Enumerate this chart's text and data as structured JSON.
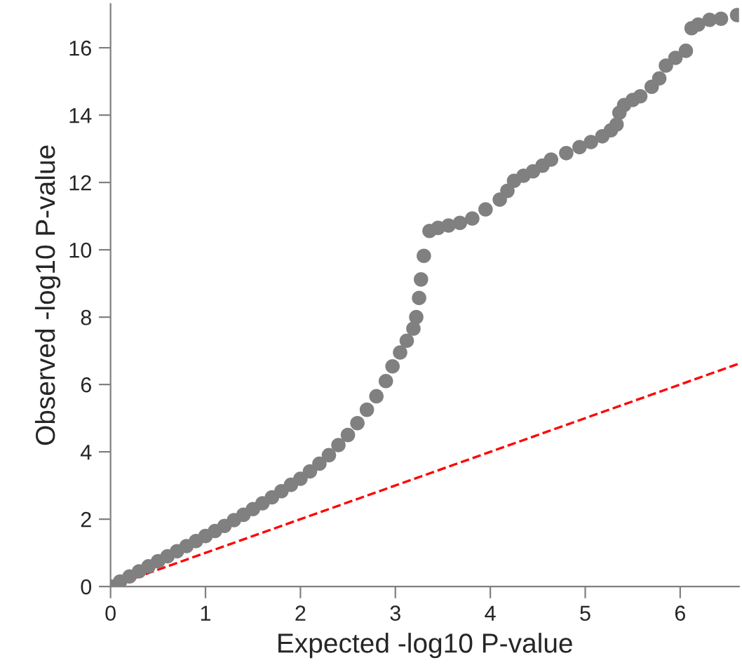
{
  "chart_data": {
    "type": "scatter",
    "xlabel": "Expected -log10 P-value",
    "ylabel": "Observed -log10 P-value",
    "xlim": [
      0,
      6.62
    ],
    "ylim": [
      0,
      17.3
    ],
    "xticks": [
      0,
      1,
      2,
      3,
      4,
      5,
      6
    ],
    "yticks": [
      0,
      2,
      4,
      6,
      8,
      10,
      12,
      14,
      16
    ],
    "grid": false,
    "series": [
      {
        "color": "#808080",
        "marker": "circle",
        "x": [
          0,
          0.1,
          0.2,
          0.3,
          0.4,
          0.5,
          0.6,
          0.7,
          0.8,
          0.9,
          1,
          1.1,
          1.2,
          1.3,
          1.4,
          1.5,
          1.6,
          1.7,
          1.8,
          1.9,
          2,
          2.1,
          2.2,
          2.3,
          2.4,
          2.5,
          2.6,
          2.7,
          2.8,
          2.9,
          2.97,
          3.05,
          3.12,
          3.19,
          3.22,
          3.25,
          3.27,
          3.3,
          3.36,
          3.45,
          3.56,
          3.68,
          3.81,
          3.95,
          4.1,
          4.18,
          4.25,
          4.35,
          4.45,
          4.55,
          4.64,
          4.8,
          4.94,
          5.06,
          5.18,
          5.27,
          5.33,
          5.36,
          5.41,
          5.5,
          5.58,
          5.7,
          5.78,
          5.85,
          5.95,
          6.06,
          6.12,
          6.19,
          6.31,
          6.43,
          6.6
        ],
        "values": [
          0,
          0.15,
          0.3,
          0.45,
          0.6,
          0.75,
          0.9,
          1.05,
          1.2,
          1.35,
          1.5,
          1.65,
          1.8,
          1.97,
          2.13,
          2.3,
          2.47,
          2.65,
          2.83,
          3.02,
          3.2,
          3.42,
          3.65,
          3.9,
          4.2,
          4.5,
          4.85,
          5.25,
          5.65,
          6.1,
          6.54,
          6.95,
          7.3,
          7.66,
          8.0,
          8.57,
          9.12,
          9.82,
          10.56,
          10.65,
          10.72,
          10.8,
          10.93,
          11.2,
          11.49,
          11.75,
          12.05,
          12.2,
          12.33,
          12.5,
          12.68,
          12.87,
          13.05,
          13.2,
          13.37,
          13.55,
          13.72,
          14.07,
          14.3,
          14.45,
          14.56,
          14.84,
          15.09,
          15.47,
          15.7,
          15.91,
          16.58,
          16.69,
          16.83,
          16.86,
          16.97
        ]
      },
      {
        "type": "line",
        "color": "#ff0000",
        "line_style": "dashed",
        "marker": "none",
        "x": [
          0,
          6.62
        ],
        "values": [
          0,
          6.62
        ]
      }
    ]
  }
}
